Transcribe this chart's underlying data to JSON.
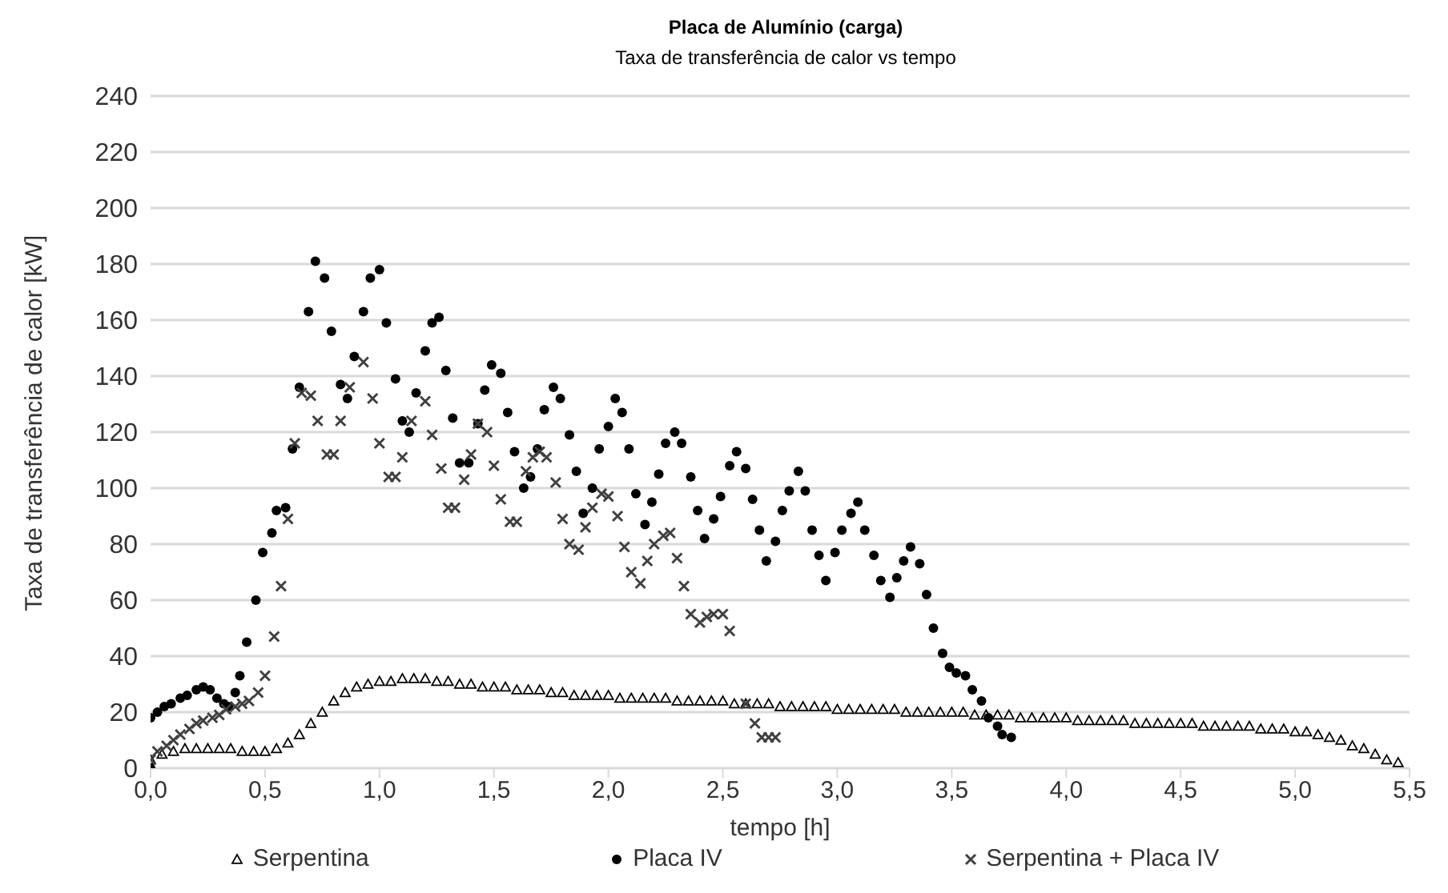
{
  "chart_data": {
    "type": "scatter",
    "title": "Placa de Alumínio (carga)",
    "subtitle": "Taxa de transferência de calor vs tempo",
    "xlabel": "tempo [h]",
    "ylabel": "Taxa de transferência de calor [kW]",
    "xlim": [
      0,
      5.5
    ],
    "ylim": [
      0,
      240
    ],
    "xticks": [
      {
        "value": 0,
        "label": "0,0"
      },
      {
        "value": 0.5,
        "label": "0,5"
      },
      {
        "value": 1,
        "label": "1,0"
      },
      {
        "value": 1.5,
        "label": "1,5"
      },
      {
        "value": 2,
        "label": "2,0"
      },
      {
        "value": 2.5,
        "label": "2,5"
      },
      {
        "value": 3,
        "label": "3,0"
      },
      {
        "value": 3.5,
        "label": "3,5"
      },
      {
        "value": 4,
        "label": "4,0"
      },
      {
        "value": 4.5,
        "label": "4,5"
      },
      {
        "value": 5,
        "label": "5,0"
      },
      {
        "value": 5.5,
        "label": "5,5"
      }
    ],
    "yticks": [
      0,
      20,
      40,
      60,
      80,
      100,
      120,
      140,
      160,
      180,
      200,
      220,
      240
    ],
    "grid": "y",
    "legend": "bottom",
    "series": [
      {
        "name": "Serpentina",
        "color": "#000000",
        "marker": "triangle",
        "x": [
          0,
          0.05,
          0.1,
          0.15,
          0.2,
          0.25,
          0.3,
          0.35,
          0.4,
          0.45,
          0.5,
          0.55,
          0.6,
          0.65,
          0.7,
          0.75,
          0.8,
          0.85,
          0.9,
          0.95,
          1,
          1.05,
          1.1,
          1.15,
          1.2,
          1.25,
          1.3,
          1.35,
          1.4,
          1.45,
          1.5,
          1.55,
          1.6,
          1.65,
          1.7,
          1.75,
          1.8,
          1.85,
          1.9,
          1.95,
          2,
          2.05,
          2.1,
          2.15,
          2.2,
          2.25,
          2.3,
          2.35,
          2.4,
          2.45,
          2.5,
          2.55,
          2.6,
          2.65,
          2.7,
          2.75,
          2.8,
          2.85,
          2.9,
          2.95,
          3,
          3.05,
          3.1,
          3.15,
          3.2,
          3.25,
          3.3,
          3.35,
          3.4,
          3.45,
          3.5,
          3.55,
          3.6,
          3.65,
          3.7,
          3.75,
          3.8,
          3.85,
          3.9,
          3.95,
          4,
          4.05,
          4.1,
          4.15,
          4.2,
          4.25,
          4.3,
          4.35,
          4.4,
          4.45,
          4.5,
          4.55,
          4.6,
          4.65,
          4.7,
          4.75,
          4.8,
          4.85,
          4.9,
          4.95,
          5,
          5.05,
          5.1,
          5.15,
          5.2,
          5.25,
          5.3,
          5.35,
          5.4,
          5.45
        ],
        "values": [
          3,
          5,
          6,
          7,
          7,
          7,
          7,
          7,
          6,
          6,
          6,
          7,
          9,
          12,
          16,
          20,
          24,
          27,
          29,
          30,
          31,
          31,
          32,
          32,
          32,
          31,
          31,
          30,
          30,
          29,
          29,
          29,
          28,
          28,
          28,
          27,
          27,
          26,
          26,
          26,
          26,
          25,
          25,
          25,
          25,
          25,
          24,
          24,
          24,
          24,
          24,
          23,
          23,
          23,
          23,
          22,
          22,
          22,
          22,
          22,
          21,
          21,
          21,
          21,
          21,
          21,
          20,
          20,
          20,
          20,
          20,
          20,
          19,
          19,
          19,
          19,
          18,
          18,
          18,
          18,
          18,
          17,
          17,
          17,
          17,
          17,
          16,
          16,
          16,
          16,
          16,
          16,
          15,
          15,
          15,
          15,
          15,
          14,
          14,
          14,
          13,
          13,
          12,
          11,
          10,
          8,
          7,
          5,
          3,
          2
        ]
      },
      {
        "name": "Placa IV",
        "color": "#000000",
        "marker": "circle",
        "x": [
          0,
          0,
          0.03,
          0.06,
          0.09,
          0.13,
          0.16,
          0.2,
          0.23,
          0.26,
          0.29,
          0.32,
          0.34,
          0.37,
          0.39,
          0.42,
          0.46,
          0.49,
          0.53,
          0.55,
          0.59,
          0.62,
          0.65,
          0.69,
          0.72,
          0.76,
          0.79,
          0.83,
          0.86,
          0.89,
          0.93,
          0.96,
          1,
          1.03,
          1.07,
          1.1,
          1.13,
          1.16,
          1.2,
          1.23,
          1.26,
          1.29,
          1.32,
          1.35,
          1.39,
          1.43,
          1.46,
          1.49,
          1.53,
          1.56,
          1.59,
          1.63,
          1.66,
          1.69,
          1.72,
          1.76,
          1.79,
          1.83,
          1.86,
          1.89,
          1.93,
          1.96,
          2,
          2.03,
          2.06,
          2.09,
          2.12,
          2.16,
          2.19,
          2.22,
          2.25,
          2.29,
          2.32,
          2.36,
          2.39,
          2.42,
          2.46,
          2.49,
          2.53,
          2.56,
          2.6,
          2.63,
          2.66,
          2.69,
          2.73,
          2.76,
          2.79,
          2.83,
          2.86,
          2.89,
          2.92,
          2.95,
          2.99,
          3.02,
          3.06,
          3.09,
          3.12,
          3.16,
          3.19,
          3.23,
          3.26,
          3.29,
          3.32,
          3.36,
          3.39,
          3.42,
          3.46,
          3.49,
          3.52,
          3.56,
          3.59,
          3.63,
          3.66,
          3.7,
          3.72,
          3.76
        ],
        "values": [
          0,
          18,
          20,
          22,
          23,
          25,
          26,
          28,
          29,
          28,
          25,
          23,
          22,
          27,
          33,
          45,
          60,
          77,
          84,
          92,
          93,
          114,
          136,
          163,
          181,
          175,
          156,
          137,
          132,
          147,
          163,
          175,
          178,
          159,
          139,
          124,
          120,
          134,
          149,
          159,
          161,
          142,
          125,
          109,
          109,
          123,
          135,
          144,
          141,
          127,
          113,
          100,
          104,
          114,
          128,
          136,
          132,
          119,
          106,
          91,
          100,
          114,
          122,
          132,
          127,
          114,
          98,
          87,
          95,
          105,
          116,
          120,
          116,
          104,
          92,
          82,
          89,
          97,
          108,
          113,
          107,
          96,
          85,
          74,
          81,
          92,
          99,
          106,
          99,
          85,
          76,
          67,
          77,
          85,
          91,
          95,
          85,
          76,
          67,
          61,
          68,
          74,
          79,
          73,
          62,
          50,
          41,
          36,
          34,
          33,
          28,
          24,
          18,
          15,
          12,
          11
        ]
      },
      {
        "name": "Serpentina + Placa IV",
        "color": "#404040",
        "marker": "cross",
        "x": [
          0,
          0.03,
          0.07,
          0.1,
          0.13,
          0.17,
          0.2,
          0.23,
          0.27,
          0.3,
          0.33,
          0.37,
          0.4,
          0.43,
          0.47,
          0.5,
          0.54,
          0.57,
          0.6,
          0.63,
          0.66,
          0.7,
          0.73,
          0.77,
          0.8,
          0.83,
          0.87,
          0.93,
          0.97,
          1,
          1.04,
          1.07,
          1.1,
          1.14,
          1.2,
          1.23,
          1.27,
          1.3,
          1.33,
          1.37,
          1.4,
          1.43,
          1.47,
          1.5,
          1.53,
          1.57,
          1.6,
          1.64,
          1.67,
          1.7,
          1.73,
          1.77,
          1.8,
          1.83,
          1.87,
          1.9,
          1.93,
          1.97,
          2,
          2.04,
          2.07,
          2.1,
          2.14,
          2.17,
          2.2,
          2.24,
          2.27,
          2.3,
          2.33,
          2.36,
          2.4,
          2.43,
          2.46,
          2.5,
          2.53,
          2.6,
          2.64,
          2.67,
          2.7,
          2.73
        ],
        "values": [
          3,
          6,
          8,
          10,
          12,
          14,
          16,
          17,
          18,
          19,
          21,
          22,
          23,
          24,
          27,
          33,
          47,
          65,
          89,
          116,
          134,
          133,
          124,
          112,
          112,
          124,
          136,
          145,
          132,
          116,
          104,
          104,
          111,
          124,
          131,
          119,
          107,
          93,
          93,
          103,
          112,
          123,
          120,
          108,
          96,
          88,
          88,
          106,
          111,
          113,
          111,
          102,
          89,
          80,
          78,
          86,
          93,
          98,
          97,
          90,
          79,
          70,
          66,
          74,
          80,
          83,
          84,
          75,
          65,
          55,
          52,
          54,
          55,
          55,
          49,
          23,
          16,
          11,
          11,
          11
        ]
      }
    ]
  }
}
